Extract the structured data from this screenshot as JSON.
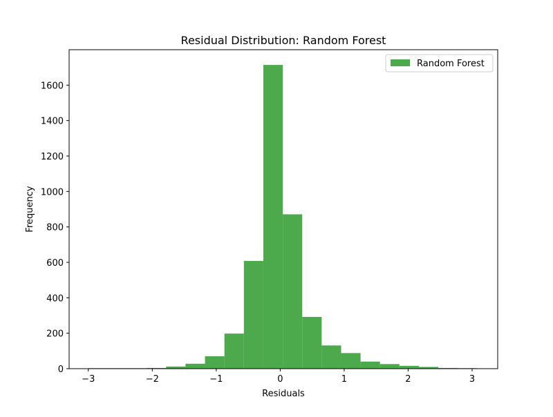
{
  "chart_data": {
    "type": "bar",
    "subtype": "histogram",
    "title": "Residual Distribution: Random Forest",
    "xlabel": "Residuals",
    "ylabel": "Frequency",
    "xlim": [
      -3.3,
      3.4
    ],
    "ylim": [
      0,
      1800
    ],
    "xticks": [
      -3,
      -2,
      -1,
      0,
      1,
      2,
      3
    ],
    "xtick_labels": [
      "−3",
      "−2",
      "−1",
      "0",
      "1",
      "2",
      "3"
    ],
    "yticks": [
      0,
      200,
      400,
      600,
      800,
      1000,
      1200,
      1400,
      1600
    ],
    "yticks_labels": [
      "0",
      "200",
      "400",
      "600",
      "800",
      "1000",
      "1200",
      "1400",
      "1600"
    ],
    "grid": false,
    "legend_position": "top-right",
    "bin_edges": [
      -3.0,
      -2.696,
      -2.392,
      -2.088,
      -1.784,
      -1.48,
      -1.176,
      -0.872,
      -0.568,
      -0.264,
      0.04,
      0.344,
      0.648,
      0.952,
      1.256,
      1.56,
      1.864,
      2.168,
      2.472,
      2.776,
      3.08
    ],
    "series": [
      {
        "name": "Random Forest",
        "color": "#4caa4c",
        "values": [
          3,
          3,
          3,
          4,
          12,
          28,
          70,
          198,
          608,
          1714,
          871,
          292,
          131,
          88,
          40,
          26,
          16,
          10,
          4,
          3
        ]
      }
    ]
  }
}
